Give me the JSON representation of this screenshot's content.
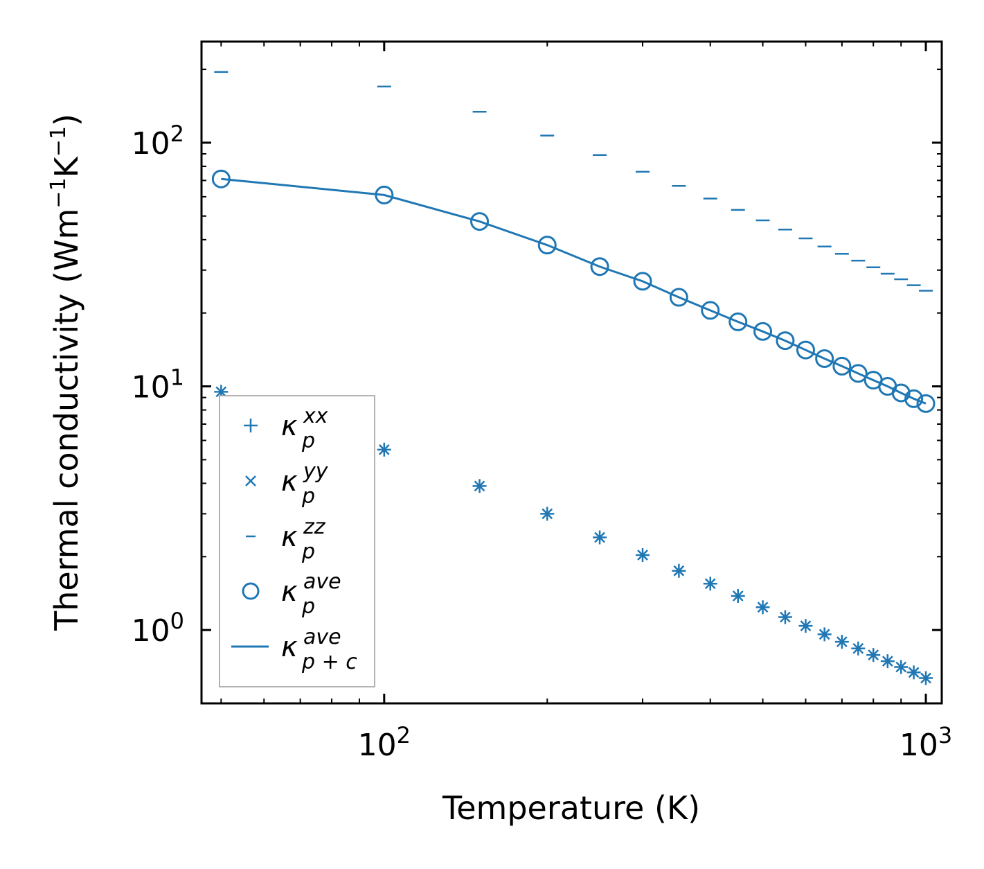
{
  "chart_data": {
    "type": "scatter",
    "xscale": "log",
    "yscale": "log",
    "xlabel": "Temperature (K)",
    "ylabel_main": "Thermal conductivity (Wm",
    "ylabel_unit_k": "K",
    "ylabel_exp": "−1",
    "ylabel_close": ")",
    "xlim": [
      46,
      1070
    ],
    "ylim": [
      0.5,
      260
    ],
    "xticks": [
      {
        "value": 100,
        "base": "10",
        "exp": "2"
      },
      {
        "value": 1000,
        "base": "10",
        "exp": "3"
      }
    ],
    "yticks": [
      {
        "value": 1,
        "base": "10",
        "exp": "0"
      },
      {
        "value": 10,
        "base": "10",
        "exp": "1"
      },
      {
        "value": 100,
        "base": "10",
        "exp": "2"
      }
    ],
    "color": "#1f77b4",
    "x": [
      50,
      100,
      150,
      200,
      250,
      300,
      350,
      400,
      450,
      500,
      550,
      600,
      650,
      700,
      750,
      800,
      850,
      900,
      950,
      1000
    ],
    "series": [
      {
        "name": "kappa_p_xx",
        "marker": "+",
        "values": [
          9.5,
          5.5,
          3.9,
          3.0,
          2.4,
          2.03,
          1.75,
          1.55,
          1.38,
          1.24,
          1.13,
          1.04,
          0.96,
          0.895,
          0.84,
          0.79,
          0.745,
          0.705,
          0.67,
          0.635
        ]
      },
      {
        "name": "kappa_p_yy",
        "marker": "x",
        "values": [
          9.5,
          5.5,
          3.9,
          3.0,
          2.4,
          2.03,
          1.75,
          1.55,
          1.38,
          1.24,
          1.13,
          1.04,
          0.96,
          0.895,
          0.84,
          0.79,
          0.745,
          0.705,
          0.67,
          0.635
        ]
      },
      {
        "name": "kappa_p_zz",
        "marker": "_",
        "values": [
          195,
          170,
          134,
          107,
          89,
          76,
          66.5,
          59,
          53,
          48,
          44,
          40.5,
          37.5,
          35,
          32.8,
          30.8,
          29,
          27.5,
          26,
          24.7
        ]
      },
      {
        "name": "kappa_p_ave",
        "marker": "o",
        "values": [
          71,
          61,
          47.5,
          38,
          31,
          27,
          23.2,
          20.5,
          18.4,
          16.8,
          15.4,
          14.1,
          13,
          12.1,
          11.3,
          10.6,
          10,
          9.4,
          8.9,
          8.5
        ]
      },
      {
        "name": "kappa_p+c_ave",
        "marker": "line",
        "values": [
          71,
          61,
          47.5,
          38,
          31,
          27,
          23.2,
          20.5,
          18.4,
          16.8,
          15.4,
          14.1,
          13,
          12.1,
          11.3,
          10.6,
          10,
          9.4,
          8.9,
          8.5
        ]
      }
    ],
    "legend": {
      "position": "lower-left",
      "entries": [
        {
          "symbol": "+",
          "main": "κ",
          "sub": "p",
          "sup": "xx"
        },
        {
          "symbol": "×",
          "main": "κ",
          "sub": "p",
          "sup": "yy"
        },
        {
          "symbol": "−",
          "main": "κ",
          "sub": "p",
          "sup": "zz"
        },
        {
          "symbol": "○",
          "main": "κ",
          "sub": "p",
          "sup": "ave"
        },
        {
          "symbol": "line",
          "main": "κ",
          "sub": "p + c",
          "sup": "ave"
        }
      ]
    }
  }
}
